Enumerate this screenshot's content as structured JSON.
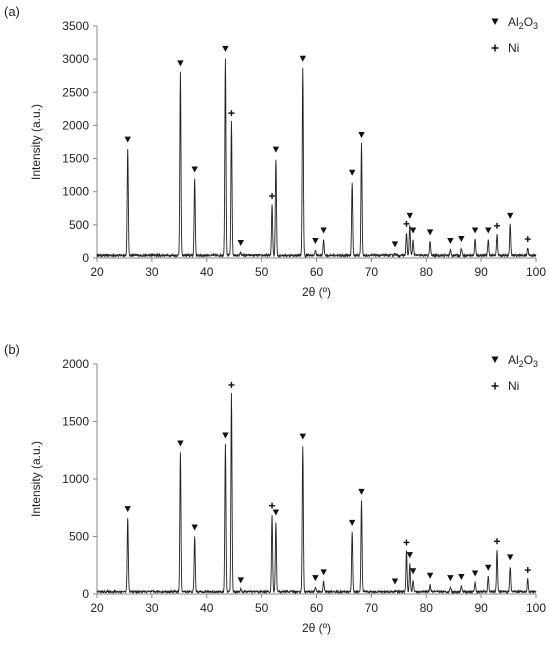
{
  "chart_data": [
    {
      "type": "line",
      "panel_label": "(a)",
      "xlabel": "2θ (º)",
      "ylabel": "Intensity (a.u.)",
      "xlim": [
        20,
        100
      ],
      "ylim": [
        0,
        3500
      ],
      "xticks": [
        "20",
        "30",
        "40",
        "50",
        "60",
        "70",
        "80",
        "90",
        "100"
      ],
      "yticks": [
        "0",
        "500",
        "1000",
        "1500",
        "2000",
        "2500",
        "3000",
        "3500"
      ],
      "legend": {
        "position": "top-right",
        "entries": [
          {
            "marker": "▼",
            "label": "Al",
            "sub": "2",
            "label2": "O",
            "sub2": "3"
          },
          {
            "marker": "+",
            "label": "Ni"
          }
        ]
      },
      "baseline": 40,
      "peaks": [
        {
          "x": 25.6,
          "y": 1650,
          "phase": "Al2O3"
        },
        {
          "x": 35.2,
          "y": 2800,
          "phase": "Al2O3"
        },
        {
          "x": 37.8,
          "y": 1200,
          "phase": "Al2O3"
        },
        {
          "x": 43.4,
          "y": 3020,
          "phase": "Al2O3"
        },
        {
          "x": 44.5,
          "y": 2050,
          "phase": "Ni"
        },
        {
          "x": 46.2,
          "y": 90,
          "phase": "Al2O3"
        },
        {
          "x": 51.9,
          "y": 800,
          "phase": "Ni"
        },
        {
          "x": 52.6,
          "y": 1500,
          "phase": "Al2O3"
        },
        {
          "x": 57.5,
          "y": 2870,
          "phase": "Al2O3"
        },
        {
          "x": 59.8,
          "y": 120,
          "phase": "Al2O3"
        },
        {
          "x": 61.3,
          "y": 280,
          "phase": "Al2O3"
        },
        {
          "x": 66.5,
          "y": 1150,
          "phase": "Al2O3"
        },
        {
          "x": 68.2,
          "y": 1720,
          "phase": "Al2O3"
        },
        {
          "x": 74.3,
          "y": 70,
          "phase": "Al2O3"
        },
        {
          "x": 76.4,
          "y": 380,
          "phase": "Ni"
        },
        {
          "x": 77.0,
          "y": 500,
          "phase": "Al2O3"
        },
        {
          "x": 77.6,
          "y": 280,
          "phase": "Al2O3"
        },
        {
          "x": 80.7,
          "y": 250,
          "phase": "Al2O3"
        },
        {
          "x": 84.4,
          "y": 120,
          "phase": "Al2O3"
        },
        {
          "x": 86.4,
          "y": 150,
          "phase": "Al2O3"
        },
        {
          "x": 88.9,
          "y": 280,
          "phase": "Al2O3"
        },
        {
          "x": 91.3,
          "y": 280,
          "phase": "Al2O3"
        },
        {
          "x": 92.9,
          "y": 350,
          "phase": "Ni"
        },
        {
          "x": 95.3,
          "y": 500,
          "phase": "Al2O3"
        },
        {
          "x": 98.5,
          "y": 150,
          "phase": "Ni"
        }
      ]
    },
    {
      "type": "line",
      "panel_label": "(b)",
      "xlabel": "2θ (º)",
      "ylabel": "Intensity (a.u.)",
      "xlim": [
        20,
        100
      ],
      "ylim": [
        0,
        2000
      ],
      "xticks": [
        "20",
        "30",
        "40",
        "50",
        "60",
        "70",
        "80",
        "90",
        "100"
      ],
      "yticks": [
        "0",
        "500",
        "1000",
        "1500",
        "2000"
      ],
      "legend": {
        "position": "top-right",
        "entries": [
          {
            "marker": "▼",
            "label": "Al",
            "sub": "2",
            "label2": "O",
            "sub2": "3"
          },
          {
            "marker": "+",
            "label": "Ni"
          }
        ]
      },
      "baseline": 20,
      "peaks": [
        {
          "x": 25.6,
          "y": 660,
          "phase": "Al2O3"
        },
        {
          "x": 35.2,
          "y": 1230,
          "phase": "Al2O3"
        },
        {
          "x": 37.8,
          "y": 500,
          "phase": "Al2O3"
        },
        {
          "x": 43.4,
          "y": 1300,
          "phase": "Al2O3"
        },
        {
          "x": 44.5,
          "y": 1740,
          "phase": "Ni"
        },
        {
          "x": 46.2,
          "y": 40,
          "phase": "Al2O3"
        },
        {
          "x": 51.9,
          "y": 690,
          "phase": "Ni"
        },
        {
          "x": 52.6,
          "y": 630,
          "phase": "Al2O3"
        },
        {
          "x": 57.5,
          "y": 1290,
          "phase": "Al2O3"
        },
        {
          "x": 59.8,
          "y": 60,
          "phase": "Al2O3"
        },
        {
          "x": 61.3,
          "y": 110,
          "phase": "Al2O3"
        },
        {
          "x": 66.5,
          "y": 540,
          "phase": "Al2O3"
        },
        {
          "x": 68.2,
          "y": 810,
          "phase": "Al2O3"
        },
        {
          "x": 74.3,
          "y": 30,
          "phase": "Al2O3"
        },
        {
          "x": 76.4,
          "y": 370,
          "phase": "Ni"
        },
        {
          "x": 77.0,
          "y": 260,
          "phase": "Al2O3"
        },
        {
          "x": 77.6,
          "y": 120,
          "phase": "Al2O3"
        },
        {
          "x": 80.7,
          "y": 80,
          "phase": "Al2O3"
        },
        {
          "x": 84.4,
          "y": 60,
          "phase": "Al2O3"
        },
        {
          "x": 86.4,
          "y": 70,
          "phase": "Al2O3"
        },
        {
          "x": 88.9,
          "y": 100,
          "phase": "Al2O3"
        },
        {
          "x": 91.3,
          "y": 150,
          "phase": "Al2O3"
        },
        {
          "x": 92.9,
          "y": 380,
          "phase": "Ni"
        },
        {
          "x": 95.3,
          "y": 240,
          "phase": "Al2O3"
        },
        {
          "x": 98.5,
          "y": 130,
          "phase": "Ni"
        }
      ]
    }
  ]
}
